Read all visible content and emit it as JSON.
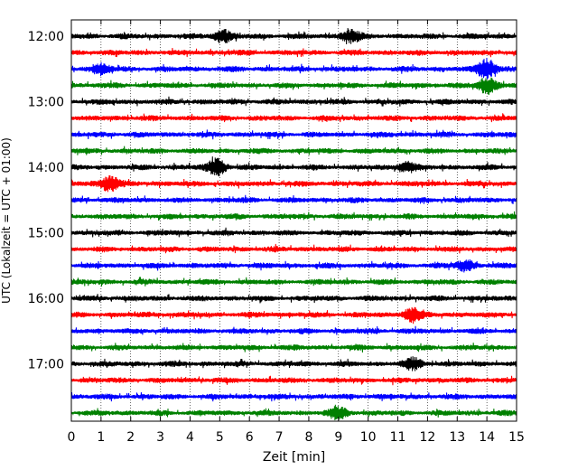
{
  "chart_data": {
    "type": "line",
    "title": "",
    "xlabel": "Zeit  [min]",
    "ylabel": "UTC (Lokalzeit = UTC + 01:00)",
    "xlim": [
      0,
      15
    ],
    "x_ticks": [
      0,
      1,
      2,
      3,
      4,
      5,
      6,
      7,
      8,
      9,
      10,
      11,
      12,
      13,
      14,
      15
    ],
    "x_tick_labels": [
      "0",
      "1",
      "2",
      "3",
      "4",
      "5",
      "6",
      "7",
      "8",
      "9",
      "10",
      "11",
      "12",
      "13",
      "14",
      "15"
    ],
    "y_ticks": [
      {
        "row": 0,
        "label": "12:00"
      },
      {
        "row": 4,
        "label": "13:00"
      },
      {
        "row": 8,
        "label": "14:00"
      },
      {
        "row": 12,
        "label": "15:00"
      },
      {
        "row": 16,
        "label": "16:00"
      },
      {
        "row": 20,
        "label": "17:00"
      }
    ],
    "grid": "x-dotted",
    "row_count": 24,
    "row_minutes": 15,
    "colors": [
      "#000000",
      "#ff0000",
      "#0000ff",
      "#008000"
    ],
    "events": [
      {
        "row": 0,
        "center": 5.1,
        "amplitude": 1.0
      },
      {
        "row": 0,
        "center": 9.4,
        "amplitude": 1.0
      },
      {
        "row": 2,
        "center": 1.0,
        "amplitude": 0.8
      },
      {
        "row": 2,
        "center": 14.0,
        "amplitude": 1.6
      },
      {
        "row": 3,
        "center": 14.0,
        "amplitude": 1.3
      },
      {
        "row": 8,
        "center": 4.9,
        "amplitude": 1.3
      },
      {
        "row": 8,
        "center": 11.3,
        "amplitude": 0.8
      },
      {
        "row": 9,
        "center": 1.3,
        "amplitude": 1.3
      },
      {
        "row": 14,
        "center": 13.3,
        "amplitude": 0.8
      },
      {
        "row": 17,
        "center": 11.5,
        "amplitude": 1.2
      },
      {
        "row": 20,
        "center": 11.5,
        "amplitude": 0.8
      },
      {
        "row": 23,
        "center": 9.0,
        "amplitude": 0.9
      }
    ]
  }
}
